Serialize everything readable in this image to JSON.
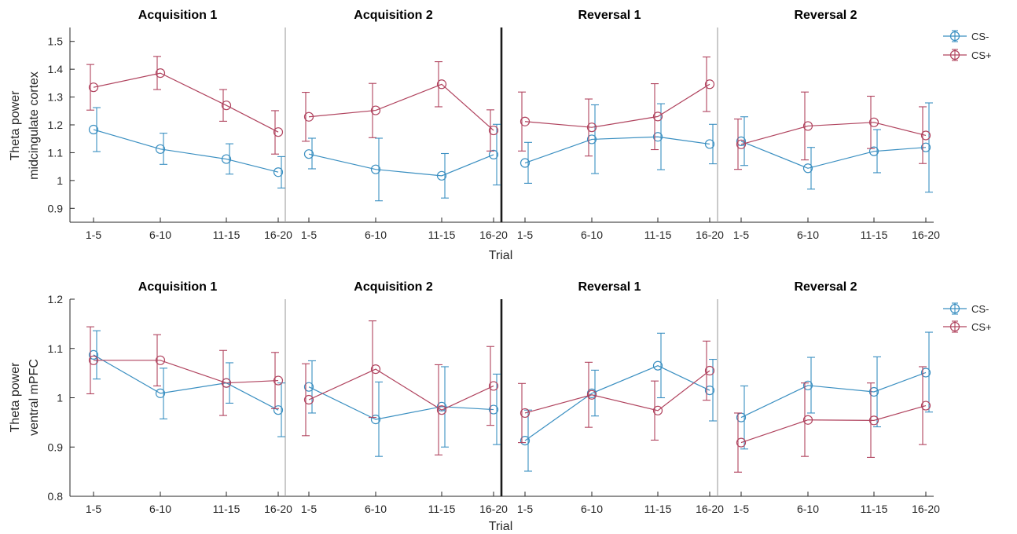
{
  "colors": {
    "cs_minus": "#3a8fc1",
    "cs_plus": "#b0435e"
  },
  "chart_data": [
    {
      "type": "line",
      "ylabel": [
        "Theta power",
        "midcingulate cortex"
      ],
      "xlabel": "Trial",
      "ylim": [
        0.85,
        1.55
      ],
      "yticks": [
        "0.9",
        "1",
        "1.1",
        "1.2",
        "1.3",
        "1.4",
        "1.5"
      ],
      "categories": [
        "1-5",
        "6-10",
        "11-15",
        "16-20"
      ],
      "legend": [
        "CS-",
        "CS+"
      ],
      "legend_position": "outside-top-right",
      "panels": [
        {
          "title": "Acquisition 1",
          "series": [
            {
              "name": "CS-",
              "values": [
                1.183,
                1.113,
                1.077,
                1.03
              ],
              "err_low": [
                1.104,
                1.058,
                1.023,
                0.973
              ],
              "err_high": [
                1.262,
                1.17,
                1.132,
                1.086
              ]
            },
            {
              "name": "CS+",
              "values": [
                1.335,
                1.386,
                1.27,
                1.174
              ],
              "err_low": [
                1.253,
                1.327,
                1.213,
                1.095
              ],
              "err_high": [
                1.417,
                1.446,
                1.327,
                1.251
              ]
            }
          ]
        },
        {
          "title": "Acquisition 2",
          "series": [
            {
              "name": "CS-",
              "values": [
                1.095,
                1.04,
                1.017,
                1.093
              ],
              "err_low": [
                1.042,
                0.927,
                0.937,
                0.984
              ],
              "err_high": [
                1.152,
                1.152,
                1.097,
                1.202
              ]
            },
            {
              "name": "CS+",
              "values": [
                1.229,
                1.252,
                1.346,
                1.18
              ],
              "err_low": [
                1.141,
                1.154,
                1.265,
                1.106
              ],
              "err_high": [
                1.317,
                1.349,
                1.427,
                1.254
              ]
            }
          ]
        },
        {
          "title": "Reversal 1",
          "series": [
            {
              "name": "CS-",
              "values": [
                1.063,
                1.148,
                1.157,
                1.131
              ],
              "err_low": [
                0.99,
                1.025,
                1.039,
                1.06
              ],
              "err_high": [
                1.137,
                1.272,
                1.276,
                1.202
              ]
            },
            {
              "name": "CS+",
              "values": [
                1.212,
                1.191,
                1.23,
                1.346
              ],
              "err_low": [
                1.106,
                1.088,
                1.111,
                1.248
              ],
              "err_high": [
                1.318,
                1.293,
                1.348,
                1.444
              ]
            }
          ]
        },
        {
          "title": "Reversal 2",
          "series": [
            {
              "name": "CS-",
              "values": [
                1.141,
                1.044,
                1.105,
                1.119
              ],
              "err_low": [
                1.054,
                0.969,
                1.028,
                0.958
              ],
              "err_high": [
                1.229,
                1.119,
                1.183,
                1.279
              ]
            },
            {
              "name": "CS+",
              "values": [
                1.13,
                1.196,
                1.209,
                1.162
              ],
              "err_low": [
                1.04,
                1.074,
                1.115,
                1.061
              ],
              "err_high": [
                1.221,
                1.318,
                1.303,
                1.265
              ]
            }
          ]
        }
      ]
    },
    {
      "type": "line",
      "ylabel": [
        "Theta power",
        "ventral mPFC"
      ],
      "xlabel": "Trial",
      "ylim": [
        0.8,
        1.2
      ],
      "yticks": [
        "0.8",
        "0.9",
        "1",
        "1.1",
        "1.2"
      ],
      "categories": [
        "1-5",
        "6-10",
        "11-15",
        "16-20"
      ],
      "legend": [
        "CS-",
        "CS+"
      ],
      "legend_position": "outside-top-right",
      "panels": [
        {
          "title": "Acquisition 1",
          "series": [
            {
              "name": "CS-",
              "values": [
                1.087,
                1.009,
                1.03,
                0.975
              ],
              "err_low": [
                1.038,
                0.957,
                0.989,
                0.921
              ],
              "err_high": [
                1.136,
                1.06,
                1.071,
                1.03
              ]
            },
            {
              "name": "CS+",
              "values": [
                1.076,
                1.076,
                1.03,
                1.035
              ],
              "err_low": [
                1.008,
                1.024,
                0.964,
                0.978
              ],
              "err_high": [
                1.144,
                1.128,
                1.096,
                1.092
              ]
            }
          ]
        },
        {
          "title": "Acquisition 2",
          "series": [
            {
              "name": "CS-",
              "values": [
                1.022,
                0.956,
                0.982,
                0.976
              ],
              "err_low": [
                0.969,
                0.881,
                0.9,
                0.905
              ],
              "err_high": [
                1.075,
                1.032,
                1.063,
                1.048
              ]
            },
            {
              "name": "CS+",
              "values": [
                0.996,
                1.058,
                0.975,
                1.024
              ],
              "err_low": [
                0.923,
                0.96,
                0.884,
                0.944
              ],
              "err_high": [
                1.069,
                1.156,
                1.067,
                1.104
              ]
            }
          ]
        },
        {
          "title": "Reversal 1",
          "series": [
            {
              "name": "CS-",
              "values": [
                0.913,
                1.009,
                1.065,
                1.015
              ],
              "err_low": [
                0.851,
                0.963,
                1.0,
                0.953
              ],
              "err_high": [
                0.975,
                1.056,
                1.131,
                1.078
              ]
            },
            {
              "name": "CS+",
              "values": [
                0.969,
                1.006,
                0.974,
                1.055
              ],
              "err_low": [
                0.909,
                0.94,
                0.914,
                0.995
              ],
              "err_high": [
                1.029,
                1.072,
                1.034,
                1.115
              ]
            }
          ]
        },
        {
          "title": "Reversal 2",
          "series": [
            {
              "name": "CS-",
              "values": [
                0.96,
                1.025,
                1.012,
                1.051
              ],
              "err_low": [
                0.896,
                0.969,
                0.941,
                0.971
              ],
              "err_high": [
                1.024,
                1.082,
                1.083,
                1.133
              ]
            },
            {
              "name": "CS+",
              "values": [
                0.909,
                0.955,
                0.954,
                0.984
              ],
              "err_low": [
                0.849,
                0.881,
                0.879,
                0.905
              ],
              "err_high": [
                0.969,
                1.03,
                1.03,
                1.063
              ]
            }
          ]
        }
      ]
    }
  ]
}
